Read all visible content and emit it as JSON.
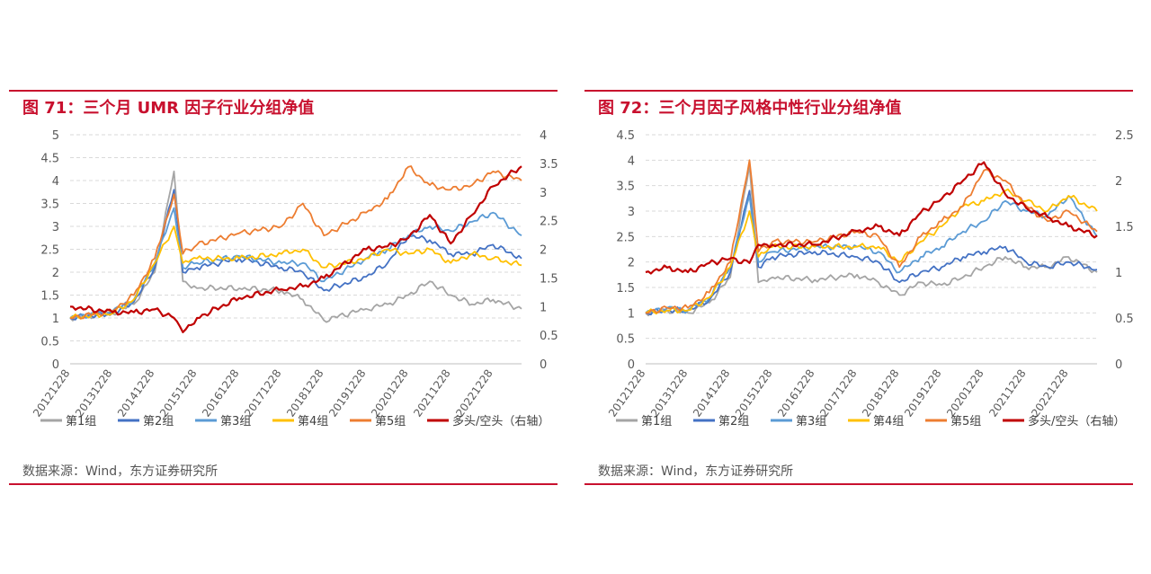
{
  "figures": [
    {
      "title": "图 71：三个月 UMR 因子行业分组净值",
      "source": "数据来源：Wind，东方证券研究所"
    },
    {
      "title": "图 72：三个月因子风格中性行业分组净值",
      "source": "数据来源：Wind，东方证券研究所"
    }
  ],
  "colors": {
    "accent": "#c8102e",
    "group1": "#a5a5a5",
    "group2": "#4472c4",
    "group3": "#5b9bd5",
    "group4": "#ffc000",
    "group5": "#ed7d31",
    "longshort": "#c00000"
  },
  "chart_data": [
    {
      "type": "line",
      "x_ticks": [
        "20121228",
        "20131228",
        "20141228",
        "20151228",
        "20161228",
        "20171228",
        "20181228",
        "20191228",
        "20201228",
        "20211228",
        "20221228"
      ],
      "x": [
        "20121228",
        "20131228",
        "20140630",
        "20141228",
        "20150612",
        "20150828",
        "20151228",
        "20161228",
        "20171228",
        "20180630",
        "20181228",
        "20191228",
        "20200630",
        "20201228",
        "20210630",
        "20211228",
        "20220630",
        "20221228",
        "20230831"
      ],
      "ylim": [
        0,
        5
      ],
      "y_ticks": [
        "0",
        "0.5",
        "1",
        "1.5",
        "2",
        "2.5",
        "3",
        "3.5",
        "4",
        "4.5",
        "5"
      ],
      "y2lim": [
        0,
        4
      ],
      "y2_ticks": [
        "0",
        "0.5",
        "1",
        "1.5",
        "2",
        "2.5",
        "3",
        "3.5",
        "4"
      ],
      "legend": [
        "第1组",
        "第2组",
        "第3组",
        "第4组",
        "第5组",
        "多头/空头（右轴）"
      ],
      "series": [
        {
          "name": "第1组",
          "axis": "left",
          "values": [
            1.0,
            1.1,
            1.3,
            2.0,
            4.2,
            1.8,
            1.65,
            1.65,
            1.6,
            1.4,
            0.95,
            1.2,
            1.3,
            1.5,
            1.8,
            1.5,
            1.3,
            1.4,
            1.2
          ]
        },
        {
          "name": "第2组",
          "axis": "left",
          "values": [
            1.0,
            1.1,
            1.35,
            2.1,
            3.8,
            2.0,
            2.1,
            2.3,
            2.1,
            2.0,
            1.6,
            1.9,
            2.2,
            2.8,
            2.7,
            2.4,
            2.4,
            2.6,
            2.3
          ]
        },
        {
          "name": "第3组",
          "axis": "left",
          "values": [
            1.0,
            1.15,
            1.4,
            2.2,
            3.4,
            2.1,
            2.2,
            2.35,
            2.2,
            2.2,
            1.8,
            2.3,
            2.5,
            2.8,
            3.0,
            2.9,
            3.1,
            3.3,
            2.8
          ]
        },
        {
          "name": "第4组",
          "axis": "left",
          "values": [
            1.0,
            1.1,
            1.4,
            2.2,
            3.0,
            2.2,
            2.3,
            2.3,
            2.4,
            2.5,
            2.1,
            2.3,
            2.5,
            2.4,
            2.5,
            2.2,
            2.4,
            2.3,
            2.15
          ]
        },
        {
          "name": "第5组",
          "axis": "left",
          "values": [
            1.0,
            1.15,
            1.5,
            2.3,
            3.7,
            2.4,
            2.6,
            2.85,
            3.0,
            3.5,
            2.8,
            3.3,
            3.6,
            4.3,
            3.9,
            3.8,
            3.9,
            4.2,
            4.0
          ]
        },
        {
          "name": "多头/空头（右轴）",
          "axis": "right",
          "values": [
            1.0,
            0.9,
            0.9,
            0.95,
            0.8,
            0.55,
            0.8,
            1.15,
            1.3,
            1.35,
            1.5,
            2.0,
            2.05,
            2.2,
            2.6,
            2.1,
            2.6,
            3.1,
            3.45
          ]
        }
      ]
    },
    {
      "type": "line",
      "x_ticks": [
        "20121228",
        "20131228",
        "20141228",
        "20151228",
        "20161228",
        "20171228",
        "20181228",
        "20191228",
        "20201228",
        "20211228",
        "20221228"
      ],
      "x": [
        "20121228",
        "20130630",
        "20131228",
        "20140630",
        "20141228",
        "20150612",
        "20150828",
        "20151228",
        "20161228",
        "20171228",
        "20180630",
        "20181228",
        "20190630",
        "20191228",
        "20200630",
        "20201228",
        "20210630",
        "20211228",
        "20220630",
        "20221228",
        "20230831"
      ],
      "ylim": [
        0,
        4.5
      ],
      "y_ticks": [
        "0",
        "0.5",
        "1",
        "1.5",
        "2",
        "2.5",
        "3",
        "3.5",
        "4",
        "4.5"
      ],
      "y2lim": [
        0,
        2.5
      ],
      "y2_ticks": [
        "0",
        "0.5",
        "1",
        "1.5",
        "2",
        "2.5"
      ],
      "legend": [
        "第1组",
        "第2组",
        "第3组",
        "第4组",
        "第5组",
        "多头/空头（右轴）"
      ],
      "series": [
        {
          "name": "第1组",
          "axis": "left",
          "values": [
            1.0,
            1.05,
            1.0,
            1.2,
            1.7,
            3.9,
            1.6,
            1.7,
            1.65,
            1.75,
            1.6,
            1.35,
            1.6,
            1.55,
            1.7,
            1.9,
            2.1,
            1.9,
            1.9,
            2.1,
            1.8
          ]
        },
        {
          "name": "第2组",
          "axis": "left",
          "values": [
            1.0,
            1.05,
            1.05,
            1.25,
            1.8,
            3.4,
            1.9,
            2.1,
            2.2,
            2.1,
            2.0,
            1.6,
            1.8,
            1.9,
            2.1,
            2.2,
            2.3,
            2.0,
            1.9,
            2.0,
            1.85
          ]
        },
        {
          "name": "第3组",
          "axis": "left",
          "values": [
            1.0,
            1.1,
            1.05,
            1.3,
            1.9,
            3.3,
            2.0,
            2.2,
            2.3,
            2.3,
            2.2,
            1.8,
            2.1,
            2.3,
            2.6,
            2.8,
            3.2,
            3.0,
            2.9,
            3.3,
            2.5
          ]
        },
        {
          "name": "第4组",
          "axis": "left",
          "values": [
            1.0,
            1.05,
            1.05,
            1.3,
            1.9,
            3.0,
            2.1,
            2.3,
            2.3,
            2.3,
            2.3,
            2.0,
            2.4,
            2.7,
            3.1,
            3.2,
            3.4,
            3.2,
            3.0,
            3.3,
            3.0
          ]
        },
        {
          "name": "第5组",
          "axis": "left",
          "values": [
            1.0,
            1.1,
            1.1,
            1.4,
            2.0,
            4.0,
            2.2,
            2.4,
            2.4,
            2.6,
            2.5,
            1.9,
            2.5,
            2.8,
            3.1,
            3.8,
            3.6,
            3.1,
            2.8,
            3.0,
            2.6
          ]
        },
        {
          "name": "多头/空头（右轴）",
          "axis": "right",
          "values": [
            1.0,
            1.05,
            1.0,
            1.1,
            1.15,
            1.1,
            1.3,
            1.3,
            1.3,
            1.45,
            1.5,
            1.4,
            1.65,
            1.8,
            2.0,
            2.2,
            1.85,
            1.7,
            1.6,
            1.5,
            1.4
          ]
        }
      ]
    }
  ]
}
